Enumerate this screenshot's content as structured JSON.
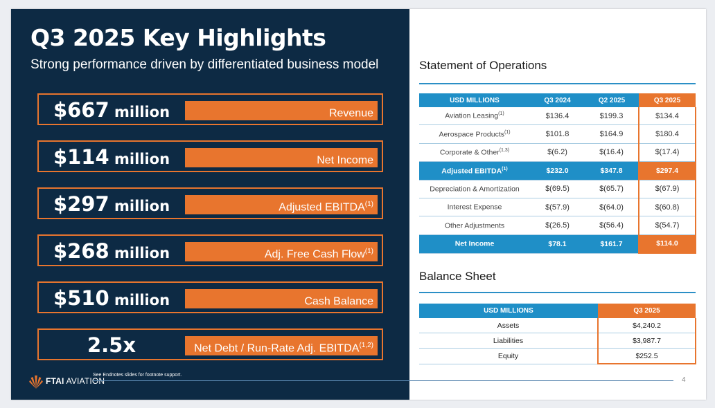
{
  "slide": {
    "title": "Q3 2025 Key Highlights",
    "subtitle": "Strong performance driven by differentiated business model",
    "footnote": "See Endnotes slides for footnote support.",
    "page_number": "4",
    "logo": {
      "brand": "FTAI",
      "suffix": " AVIATION"
    }
  },
  "colors": {
    "navy": "#0d2a44",
    "orange": "#e8752e",
    "blue": "#1f8fc7"
  },
  "highlights": [
    {
      "value": "$667",
      "unit": " million",
      "label": "Revenue",
      "note": ""
    },
    {
      "value": "$114",
      "unit": " million",
      "label": "Net Income",
      "note": ""
    },
    {
      "value": "$297",
      "unit": " million",
      "label": "Adjusted EBITDA",
      "note": "(1)"
    },
    {
      "value": "$268",
      "unit": " million",
      "label": "Adj. Free Cash Flow",
      "note": "(1)"
    },
    {
      "value": "$510",
      "unit": " million",
      "label": "Cash Balance",
      "note": ""
    },
    {
      "value": "2.5x",
      "unit": "",
      "label": "Net Debt / Run-Rate Adj. EBITDA",
      "note": "(1,2)"
    }
  ],
  "operations": {
    "title": "Statement of Operations",
    "headers": [
      "USD MILLIONS",
      "Q3 2024",
      "Q2 2025",
      "Q3 2025"
    ],
    "rows": [
      {
        "label": "Aviation Leasing",
        "note": "(1)",
        "values": [
          "$136.4",
          "$199.3",
          "$134.4"
        ]
      },
      {
        "label": "Aerospace Products",
        "note": "(1)",
        "values": [
          "$101.8",
          "$164.9",
          "$180.4"
        ]
      },
      {
        "label": "Corporate & Other",
        "note": "(1,3)",
        "values": [
          "$(6.2)",
          "$(16.4)",
          "$(17.4)"
        ]
      },
      {
        "label": "Adjusted EBITDA",
        "note": "(1)",
        "values": [
          "$232.0",
          "$347.8",
          "$297.4"
        ]
      },
      {
        "label": "Depreciation & Amortization",
        "note": "",
        "values": [
          "$(69.5)",
          "$(65.7)",
          "$(67.9)"
        ]
      },
      {
        "label": "Interest Expense",
        "note": "",
        "values": [
          "$(57.9)",
          "$(64.0)",
          "$(60.8)"
        ]
      },
      {
        "label": "Other Adjustments",
        "note": "",
        "values": [
          "$(26.5)",
          "$(56.4)",
          "$(54.7)"
        ]
      },
      {
        "label": "Net Income",
        "note": "",
        "values": [
          "$78.1",
          "$161.7",
          "$114.0"
        ]
      }
    ]
  },
  "balance": {
    "title": "Balance Sheet",
    "headers": [
      "USD MILLIONS",
      "Q3 2025"
    ],
    "rows": [
      {
        "label": "Assets",
        "value": "$4,240.2"
      },
      {
        "label": "Liabilities",
        "value": "$3,987.7"
      },
      {
        "label": "Equity",
        "value": "$252.5"
      }
    ]
  }
}
